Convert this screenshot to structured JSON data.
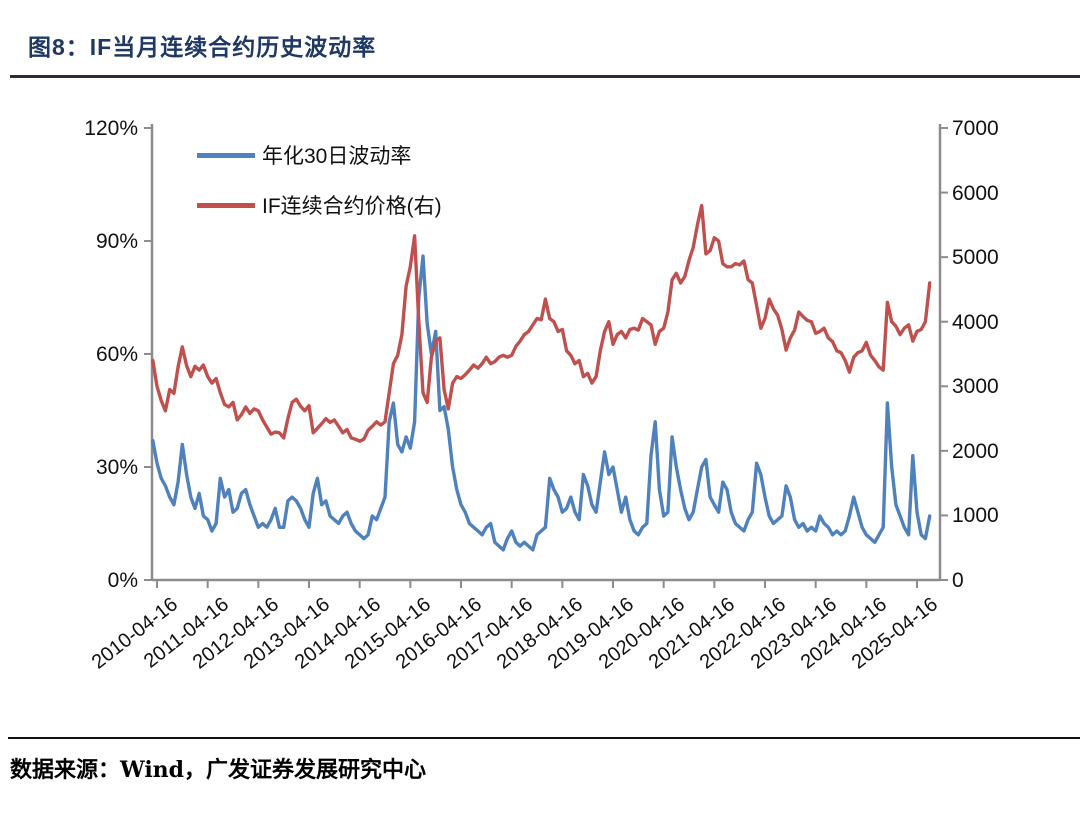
{
  "header": {
    "title": "图8：IF当月连续合约历史波动率"
  },
  "footer": {
    "source": "数据来源：Wind，广发证券发展研究中心"
  },
  "colors": {
    "title": "#1F3864",
    "axis": "#8C8C8C",
    "volatility_line": "#4F81BD",
    "price_line": "#C0504D"
  },
  "chart_data": {
    "type": "line",
    "title": "IF当月连续合约历史波动率",
    "legend_position": "top-left",
    "grid": false,
    "x_tick_labels": [
      "2010-04-16",
      "2011-04-16",
      "2012-04-16",
      "2013-04-16",
      "2014-04-16",
      "2015-04-16",
      "2016-04-16",
      "2017-04-16",
      "2018-04-16",
      "2019-04-16",
      "2020-04-16",
      "2021-04-16",
      "2022-04-16",
      "2023-04-16",
      "2024-04-16",
      "2025-04-16"
    ],
    "left_axis": {
      "ylim": [
        0,
        120
      ],
      "unit": "%",
      "tick_values": [
        0,
        30,
        60,
        90,
        120
      ],
      "tick_labels": [
        "0%",
        "30%",
        "60%",
        "90%",
        "120%"
      ]
    },
    "right_axis": {
      "ylim": [
        0,
        7000
      ],
      "tick_values": [
        0,
        1000,
        2000,
        3000,
        4000,
        5000,
        6000,
        7000
      ],
      "tick_labels": [
        "0",
        "1000",
        "2000",
        "3000",
        "4000",
        "5000",
        "6000",
        "7000"
      ]
    },
    "x": [
      "2010-04",
      "2010-05",
      "2010-06",
      "2010-07",
      "2010-08",
      "2010-09",
      "2010-10",
      "2010-11",
      "2010-12",
      "2011-01",
      "2011-02",
      "2011-03",
      "2011-04",
      "2011-05",
      "2011-06",
      "2011-07",
      "2011-08",
      "2011-09",
      "2011-10",
      "2011-11",
      "2011-12",
      "2012-01",
      "2012-02",
      "2012-03",
      "2012-04",
      "2012-05",
      "2012-06",
      "2012-07",
      "2012-08",
      "2012-09",
      "2012-10",
      "2012-11",
      "2012-12",
      "2013-01",
      "2013-02",
      "2013-03",
      "2013-04",
      "2013-05",
      "2013-06",
      "2013-07",
      "2013-08",
      "2013-09",
      "2013-10",
      "2013-11",
      "2013-12",
      "2014-01",
      "2014-02",
      "2014-03",
      "2014-04",
      "2014-05",
      "2014-06",
      "2014-07",
      "2014-08",
      "2014-09",
      "2014-10",
      "2014-11",
      "2014-12",
      "2015-01",
      "2015-02",
      "2015-03",
      "2015-04",
      "2015-05",
      "2015-06",
      "2015-07",
      "2015-08",
      "2015-09",
      "2015-10",
      "2015-11",
      "2015-12",
      "2016-01",
      "2016-02",
      "2016-03",
      "2016-04",
      "2016-05",
      "2016-06",
      "2016-07",
      "2016-08",
      "2016-09",
      "2016-10",
      "2016-11",
      "2016-12",
      "2017-01",
      "2017-02",
      "2017-03",
      "2017-04",
      "2017-05",
      "2017-06",
      "2017-07",
      "2017-08",
      "2017-09",
      "2017-10",
      "2017-11",
      "2017-12",
      "2018-01",
      "2018-02",
      "2018-03",
      "2018-04",
      "2018-05",
      "2018-06",
      "2018-07",
      "2018-08",
      "2018-09",
      "2018-10",
      "2018-11",
      "2018-12",
      "2019-01",
      "2019-02",
      "2019-03",
      "2019-04",
      "2019-05",
      "2019-06",
      "2019-07",
      "2019-08",
      "2019-09",
      "2019-10",
      "2019-11",
      "2019-12",
      "2020-01",
      "2020-02",
      "2020-03",
      "2020-04",
      "2020-05",
      "2020-06",
      "2020-07",
      "2020-08",
      "2020-09",
      "2020-10",
      "2020-11",
      "2020-12",
      "2021-01",
      "2021-02",
      "2021-03",
      "2021-04",
      "2021-05",
      "2021-06",
      "2021-07",
      "2021-08",
      "2021-09",
      "2021-10",
      "2021-11",
      "2021-12",
      "2022-01",
      "2022-02",
      "2022-03",
      "2022-04",
      "2022-05",
      "2022-06",
      "2022-07",
      "2022-08",
      "2022-09",
      "2022-10",
      "2022-11",
      "2022-12",
      "2023-01",
      "2023-02",
      "2023-03",
      "2023-04",
      "2023-05",
      "2023-06",
      "2023-07",
      "2023-08",
      "2023-09",
      "2023-10",
      "2023-11",
      "2023-12",
      "2024-01",
      "2024-02",
      "2024-03",
      "2024-04",
      "2024-05",
      "2024-06",
      "2024-07",
      "2024-08",
      "2024-09",
      "2024-10",
      "2024-11",
      "2024-12",
      "2025-01",
      "2025-02",
      "2025-03",
      "2025-04",
      "2025-05",
      "2025-06",
      "2025-07",
      "2025-08"
    ],
    "series": [
      {
        "name": "年化30日波动率",
        "axis": "left",
        "color": "#4F81BD",
        "unit": "%",
        "values": [
          37,
          31,
          27,
          25,
          22,
          20,
          26,
          36,
          28,
          22,
          19,
          23,
          17,
          16,
          13,
          15,
          27,
          22,
          24,
          18,
          19,
          23,
          24,
          20,
          17,
          14,
          15,
          14,
          16,
          19,
          14,
          14,
          21,
          22,
          21,
          19,
          16,
          14,
          23,
          27,
          20,
          21,
          17,
          16,
          15,
          17,
          18,
          15,
          13,
          12,
          11,
          12,
          17,
          16,
          19,
          22,
          42,
          47,
          36,
          34,
          38,
          35,
          42,
          75,
          86,
          68,
          60,
          66,
          45,
          46,
          40,
          30,
          24,
          20,
          18,
          15,
          14,
          13,
          12,
          14,
          15,
          10,
          9,
          8,
          11,
          13,
          10,
          9,
          10,
          9,
          8,
          12,
          13,
          14,
          27,
          24,
          22,
          18,
          19,
          22,
          18,
          16,
          28,
          25,
          20,
          18,
          26,
          34,
          28,
          30,
          24,
          18,
          22,
          16,
          13,
          12,
          14,
          15,
          33,
          42,
          24,
          17,
          18,
          38,
          30,
          24,
          19,
          16,
          18,
          24,
          30,
          32,
          22,
          20,
          18,
          26,
          24,
          18,
          15,
          14,
          13,
          16,
          18,
          31,
          28,
          22,
          17,
          15,
          16,
          17,
          25,
          22,
          16,
          14,
          15,
          13,
          14,
          13,
          17,
          15,
          14,
          12,
          13,
          12,
          13,
          17,
          22,
          18,
          14,
          12,
          11,
          10,
          12,
          14,
          47,
          30,
          20,
          17,
          14,
          12,
          33,
          18,
          12,
          11,
          17
        ]
      },
      {
        "name": "IF连续合约价格(右)",
        "axis": "right",
        "color": "#C0504D",
        "values": [
          3400,
          3000,
          2780,
          2620,
          2950,
          2890,
          3300,
          3610,
          3320,
          3150,
          3310,
          3250,
          3330,
          3150,
          3050,
          3120,
          2900,
          2720,
          2680,
          2750,
          2480,
          2560,
          2680,
          2580,
          2650,
          2620,
          2480,
          2370,
          2260,
          2290,
          2280,
          2200,
          2500,
          2750,
          2800,
          2690,
          2620,
          2700,
          2280,
          2350,
          2420,
          2500,
          2440,
          2480,
          2380,
          2280,
          2330,
          2200,
          2180,
          2150,
          2180,
          2320,
          2380,
          2450,
          2400,
          2450,
          2900,
          3350,
          3480,
          3800,
          4550,
          4850,
          5330,
          4000,
          2900,
          2750,
          3450,
          3700,
          3750,
          2950,
          2650,
          3050,
          3150,
          3120,
          3180,
          3250,
          3330,
          3280,
          3350,
          3450,
          3350,
          3380,
          3450,
          3480,
          3450,
          3480,
          3620,
          3700,
          3800,
          3850,
          3950,
          4050,
          4030,
          4350,
          4050,
          4000,
          3850,
          3880,
          3550,
          3480,
          3350,
          3400,
          3150,
          3200,
          3050,
          3150,
          3550,
          3850,
          4000,
          3650,
          3800,
          3850,
          3750,
          3880,
          3900,
          3870,
          4050,
          4000,
          3950,
          3650,
          3850,
          3900,
          4150,
          4650,
          4750,
          4600,
          4700,
          4950,
          5150,
          5500,
          5800,
          5050,
          5100,
          5300,
          5250,
          4900,
          4850,
          4850,
          4900,
          4880,
          4940,
          4650,
          4600,
          4250,
          3900,
          4050,
          4350,
          4200,
          4100,
          3880,
          3560,
          3750,
          3870,
          4150,
          4080,
          4020,
          4000,
          3820,
          3850,
          3900,
          3750,
          3690,
          3550,
          3520,
          3400,
          3220,
          3450,
          3520,
          3550,
          3680,
          3480,
          3400,
          3300,
          3250,
          4300,
          4000,
          3930,
          3800,
          3900,
          3950,
          3700,
          3850,
          3880,
          4000,
          4600
        ]
      }
    ]
  }
}
